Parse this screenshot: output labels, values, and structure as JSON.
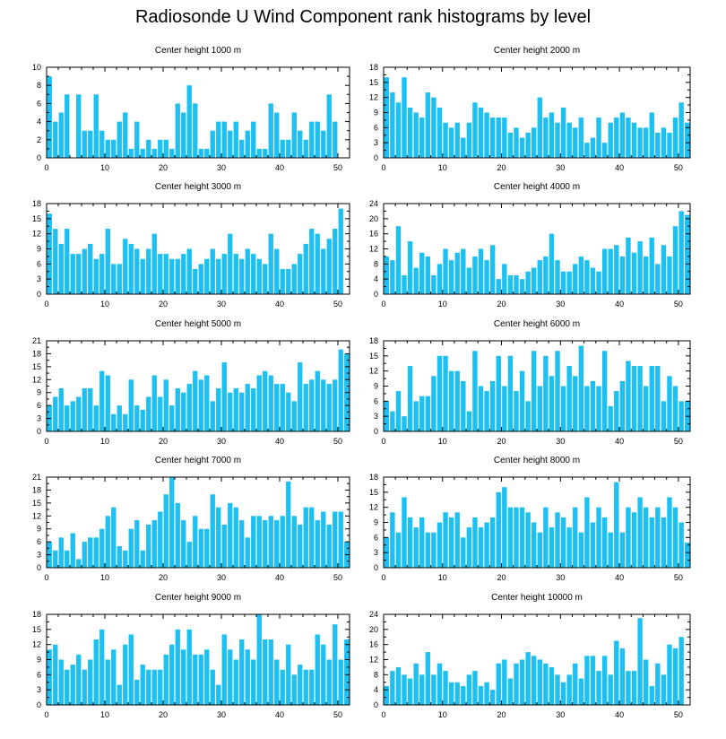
{
  "title": "Radiosonde U Wind Component rank histograms by level",
  "colors": {
    "bar": "#1cc0f2",
    "axis": "#000000"
  },
  "chart_data": [
    {
      "type": "bar",
      "title": "Center height 1000 m",
      "xlim": [
        0,
        52
      ],
      "ylim": [
        0,
        10
      ],
      "xticks": [
        0,
        10,
        20,
        30,
        40,
        50
      ],
      "yticks": [
        0,
        2,
        4,
        6,
        8,
        10
      ],
      "values": [
        9,
        4,
        5,
        7,
        0,
        7,
        3,
        3,
        7,
        3,
        2,
        2,
        4,
        5,
        1,
        4,
        1,
        2,
        1,
        2,
        2,
        1,
        6,
        5,
        8,
        6,
        1,
        1,
        3,
        4,
        4,
        3,
        4,
        2,
        3,
        4,
        1,
        1,
        6,
        5,
        2,
        2,
        5,
        3,
        2,
        4,
        4,
        3,
        7,
        4,
        0,
        0
      ]
    },
    {
      "type": "bar",
      "title": "Center height 2000 m",
      "xlim": [
        0,
        52
      ],
      "ylim": [
        0,
        18
      ],
      "xticks": [
        0,
        10,
        20,
        30,
        40,
        50
      ],
      "yticks": [
        0,
        3,
        6,
        9,
        12,
        15,
        18
      ],
      "values": [
        16,
        13,
        11,
        16,
        10,
        9,
        8,
        13,
        12,
        10,
        7,
        6,
        7,
        4,
        7,
        11,
        10,
        9,
        8,
        8,
        8,
        5,
        6,
        4,
        5,
        6,
        12,
        8,
        9,
        7,
        10,
        7,
        6,
        8,
        3,
        4,
        8,
        3,
        7,
        8,
        9,
        8,
        7,
        6,
        6,
        9,
        5,
        6,
        5,
        8,
        11,
        7
      ]
    },
    {
      "type": "bar",
      "title": "Center height 3000 m",
      "xlim": [
        0,
        52
      ],
      "ylim": [
        0,
        18
      ],
      "xticks": [
        0,
        10,
        20,
        30,
        40,
        50
      ],
      "yticks": [
        0,
        3,
        6,
        9,
        12,
        15,
        18
      ],
      "values": [
        16,
        13,
        10,
        13,
        8,
        8,
        9,
        10,
        7,
        8,
        13,
        6,
        6,
        11,
        10,
        9,
        7,
        9,
        12,
        8,
        8,
        7,
        7,
        8,
        9,
        5,
        6,
        7,
        9,
        7,
        8,
        12,
        8,
        7,
        9,
        8,
        7,
        6,
        12,
        9,
        5,
        5,
        6,
        8,
        10,
        13,
        12,
        9,
        11,
        13,
        17,
        0
      ]
    },
    {
      "type": "bar",
      "title": "Center height 4000 m",
      "xlim": [
        0,
        52
      ],
      "ylim": [
        0,
        24
      ],
      "xticks": [
        0,
        10,
        20,
        30,
        40,
        50
      ],
      "yticks": [
        0,
        4,
        8,
        12,
        16,
        20,
        24
      ],
      "values": [
        10,
        9,
        18,
        5,
        14,
        7,
        11,
        10,
        5,
        8,
        12,
        9,
        11,
        12,
        7,
        10,
        12,
        9,
        13,
        4,
        8,
        5,
        5,
        4,
        6,
        7,
        9,
        10,
        16,
        9,
        6,
        6,
        8,
        10,
        9,
        7,
        6,
        12,
        12,
        13,
        10,
        15,
        11,
        14,
        10,
        15,
        8,
        13,
        10,
        18,
        22,
        21
      ]
    },
    {
      "type": "bar",
      "title": "Center height 5000 m",
      "xlim": [
        0,
        52
      ],
      "ylim": [
        0,
        21
      ],
      "xticks": [
        0,
        10,
        20,
        30,
        40,
        50
      ],
      "yticks": [
        0,
        3,
        6,
        9,
        12,
        15,
        18,
        21
      ],
      "values": [
        6,
        8,
        10,
        6,
        7,
        8,
        10,
        10,
        6,
        14,
        13,
        4,
        6,
        4,
        12,
        6,
        5,
        8,
        13,
        8,
        12,
        6,
        10,
        9,
        11,
        14,
        12,
        13,
        7,
        10,
        16,
        9,
        10,
        9,
        11,
        10,
        13,
        14,
        13,
        11,
        11,
        9,
        7,
        16,
        11,
        12,
        14,
        12,
        11,
        12,
        19,
        18
      ]
    },
    {
      "type": "bar",
      "title": "Center height 6000 m",
      "xlim": [
        0,
        52
      ],
      "ylim": [
        0,
        18
      ],
      "xticks": [
        0,
        10,
        20,
        30,
        40,
        50
      ],
      "yticks": [
        0,
        3,
        6,
        9,
        12,
        15,
        18
      ],
      "values": [
        6,
        4,
        8,
        3,
        13,
        6,
        7,
        7,
        11,
        15,
        15,
        12,
        12,
        10,
        4,
        16,
        9,
        8,
        10,
        15,
        9,
        15,
        8,
        12,
        6,
        16,
        9,
        15,
        11,
        16,
        9,
        13,
        11,
        17,
        9,
        10,
        9,
        16,
        5,
        8,
        10,
        14,
        13,
        13,
        9,
        13,
        13,
        6,
        11,
        9,
        6,
        6
      ]
    },
    {
      "type": "bar",
      "title": "Center height 7000 m",
      "xlim": [
        0,
        52
      ],
      "ylim": [
        0,
        21
      ],
      "xticks": [
        0,
        10,
        20,
        30,
        40,
        50
      ],
      "yticks": [
        0,
        3,
        6,
        9,
        12,
        15,
        18,
        21
      ],
      "values": [
        6,
        4,
        7,
        4,
        8,
        2,
        6,
        7,
        7,
        9,
        12,
        14,
        5,
        4,
        9,
        11,
        4,
        10,
        11,
        13,
        17,
        21,
        15,
        11,
        6,
        12,
        9,
        9,
        17,
        14,
        10,
        15,
        14,
        11,
        7,
        12,
        12,
        11,
        12,
        11,
        12,
        20,
        12,
        10,
        14,
        14,
        11,
        13,
        10,
        13,
        13,
        6
      ]
    },
    {
      "type": "bar",
      "title": "Center height 8000 m",
      "xlim": [
        0,
        52
      ],
      "ylim": [
        0,
        18
      ],
      "xticks": [
        0,
        10,
        20,
        30,
        40,
        50
      ],
      "yticks": [
        0,
        3,
        6,
        9,
        12,
        15,
        18
      ],
      "values": [
        6,
        11,
        7,
        14,
        10,
        8,
        10,
        7,
        7,
        9,
        11,
        10,
        11,
        6,
        8,
        10,
        8,
        9,
        10,
        15,
        16,
        12,
        12,
        12,
        11,
        9,
        7,
        12,
        8,
        11,
        10,
        8,
        12,
        7,
        14,
        9,
        12,
        10,
        7,
        17,
        7,
        12,
        11,
        14,
        12,
        10,
        12,
        10,
        14,
        12,
        9,
        5
      ]
    },
    {
      "type": "bar",
      "title": "Center height 9000 m",
      "xlim": [
        0,
        52
      ],
      "ylim": [
        0,
        18
      ],
      "xticks": [
        0,
        10,
        20,
        30,
        40,
        50
      ],
      "yticks": [
        0,
        3,
        6,
        9,
        12,
        15,
        18
      ],
      "values": [
        11,
        12,
        9,
        7,
        8,
        10,
        7,
        9,
        13,
        15,
        9,
        11,
        4,
        12,
        14,
        5,
        8,
        7,
        7,
        7,
        10,
        12,
        15,
        11,
        15,
        10,
        10,
        11,
        7,
        4,
        14,
        11,
        9,
        13,
        11,
        9,
        18,
        13,
        13,
        9,
        7,
        12,
        6,
        8,
        7,
        7,
        14,
        12,
        9,
        16,
        9,
        13
      ]
    },
    {
      "type": "bar",
      "title": "Center height 10000 m",
      "xlim": [
        0,
        52
      ],
      "ylim": [
        0,
        24
      ],
      "xticks": [
        0,
        10,
        20,
        30,
        40,
        50
      ],
      "yticks": [
        0,
        4,
        8,
        12,
        16,
        20,
        24
      ],
      "values": [
        5,
        9,
        10,
        8,
        7,
        11,
        8,
        14,
        8,
        11,
        9,
        6,
        6,
        5,
        8,
        9,
        5,
        6,
        4,
        11,
        12,
        7,
        11,
        12,
        14,
        13,
        12,
        11,
        10,
        8,
        6,
        8,
        11,
        7,
        13,
        13,
        9,
        13,
        8,
        17,
        15,
        9,
        9,
        23,
        12,
        5,
        11,
        8,
        16,
        15,
        18,
        0
      ]
    }
  ]
}
